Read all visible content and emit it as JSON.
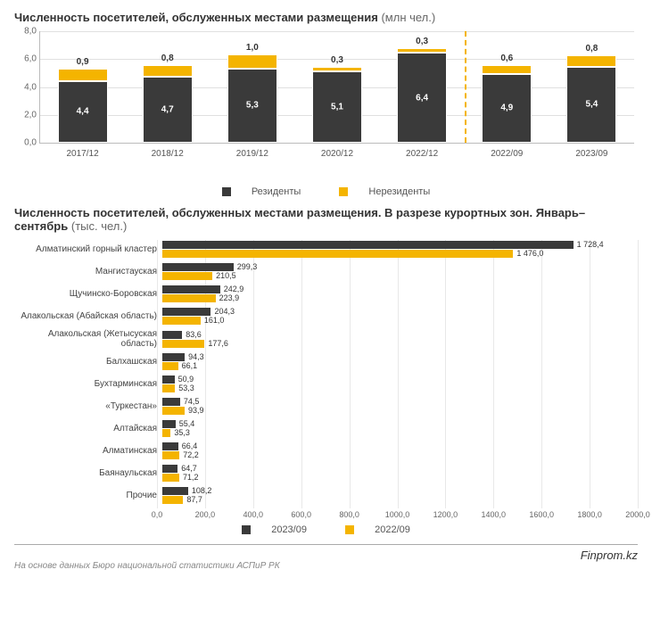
{
  "colors": {
    "dark": "#3a3a3a",
    "gold": "#f4b400",
    "grid": "#e0e0e0",
    "axis": "#bbbbbb",
    "bg": "#ffffff"
  },
  "chart1": {
    "title_bold": "Численность посетителей, обслуженных местами размещения",
    "title_units": "(млн чел.)",
    "type": "stacked-bar",
    "ymax": 8,
    "ytick_step": 2,
    "yticks": [
      "0,0",
      "2,0",
      "4,0",
      "6,0",
      "8,0"
    ],
    "divider_after_index": 4,
    "categories": [
      "2017/12",
      "2018/12",
      "2019/12",
      "2020/12",
      "2022/12",
      "2022/09",
      "2023/09"
    ],
    "series_dark_name": "Резиденты",
    "series_gold_name": "Нерезиденты",
    "dark_values": [
      4.4,
      4.7,
      5.3,
      5.1,
      6.4,
      4.9,
      5.4
    ],
    "gold_values": [
      0.9,
      0.8,
      1.0,
      0.3,
      0.3,
      0.6,
      0.8
    ],
    "dark_labels": [
      "4,4",
      "4,7",
      "5,3",
      "5,1",
      "6,4",
      "4,9",
      "5,4"
    ],
    "gold_labels": [
      "0,9",
      "0,8",
      "1,0",
      "0,3",
      "0,3",
      "0,6",
      "0,8"
    ]
  },
  "chart2": {
    "title_bold": "Численность посетителей, обслуженных местами размещения. В разрезе курортных зон. Январь–сентябрь",
    "title_units": "(тыс. чел.)",
    "type": "grouped-hbar",
    "xmax": 2000,
    "xtick_step": 200,
    "xticks": [
      "0,0",
      "200,0",
      "400,0",
      "600,0",
      "800,0",
      "1000,0",
      "1200,0",
      "1400,0",
      "1600,0",
      "1800,0",
      "2000,0"
    ],
    "series_dark_name": "2023/09",
    "series_gold_name": "2022/09",
    "rows": [
      {
        "label": "Алматинский горный кластер",
        "dark": 1728.4,
        "gold": 1476.0,
        "dark_l": "1 728,4",
        "gold_l": "1 476,0"
      },
      {
        "label": "Мангистауская",
        "dark": 299.3,
        "gold": 210.5,
        "dark_l": "299,3",
        "gold_l": "210,5"
      },
      {
        "label": "Щучинско-Боровская",
        "dark": 242.9,
        "gold": 223.9,
        "dark_l": "242,9",
        "gold_l": "223,9"
      },
      {
        "label": "Алакольская (Абайская область)",
        "dark": 204.3,
        "gold": 161.0,
        "dark_l": "204,3",
        "gold_l": "161,0"
      },
      {
        "label": "Алакольская (Жетысуская область)",
        "dark": 83.6,
        "gold": 177.6,
        "dark_l": "83,6",
        "gold_l": "177,6"
      },
      {
        "label": "Балхашская",
        "dark": 94.3,
        "gold": 66.1,
        "dark_l": "94,3",
        "gold_l": "66,1"
      },
      {
        "label": "Бухтарминская",
        "dark": 50.9,
        "gold": 53.3,
        "dark_l": "50,9",
        "gold_l": "53,3"
      },
      {
        "label": "«Туркестан»",
        "dark": 74.5,
        "gold": 93.9,
        "dark_l": "74,5",
        "gold_l": "93,9"
      },
      {
        "label": "Алтайская",
        "dark": 55.4,
        "gold": 35.3,
        "dark_l": "55,4",
        "gold_l": "35,3"
      },
      {
        "label": "Алматинская",
        "dark": 66.4,
        "gold": 72.2,
        "dark_l": "66,4",
        "gold_l": "72,2"
      },
      {
        "label": "Баянаульская",
        "dark": 64.7,
        "gold": 71.2,
        "dark_l": "64,7",
        "gold_l": "71,2"
      },
      {
        "label": "Прочие",
        "dark": 108.2,
        "gold": 87.7,
        "dark_l": "108,2",
        "gold_l": "87,7"
      }
    ]
  },
  "footer": {
    "brand": "Finprom.kz",
    "source": "На основе данных Бюро национальной статистики АСПиР РК"
  }
}
